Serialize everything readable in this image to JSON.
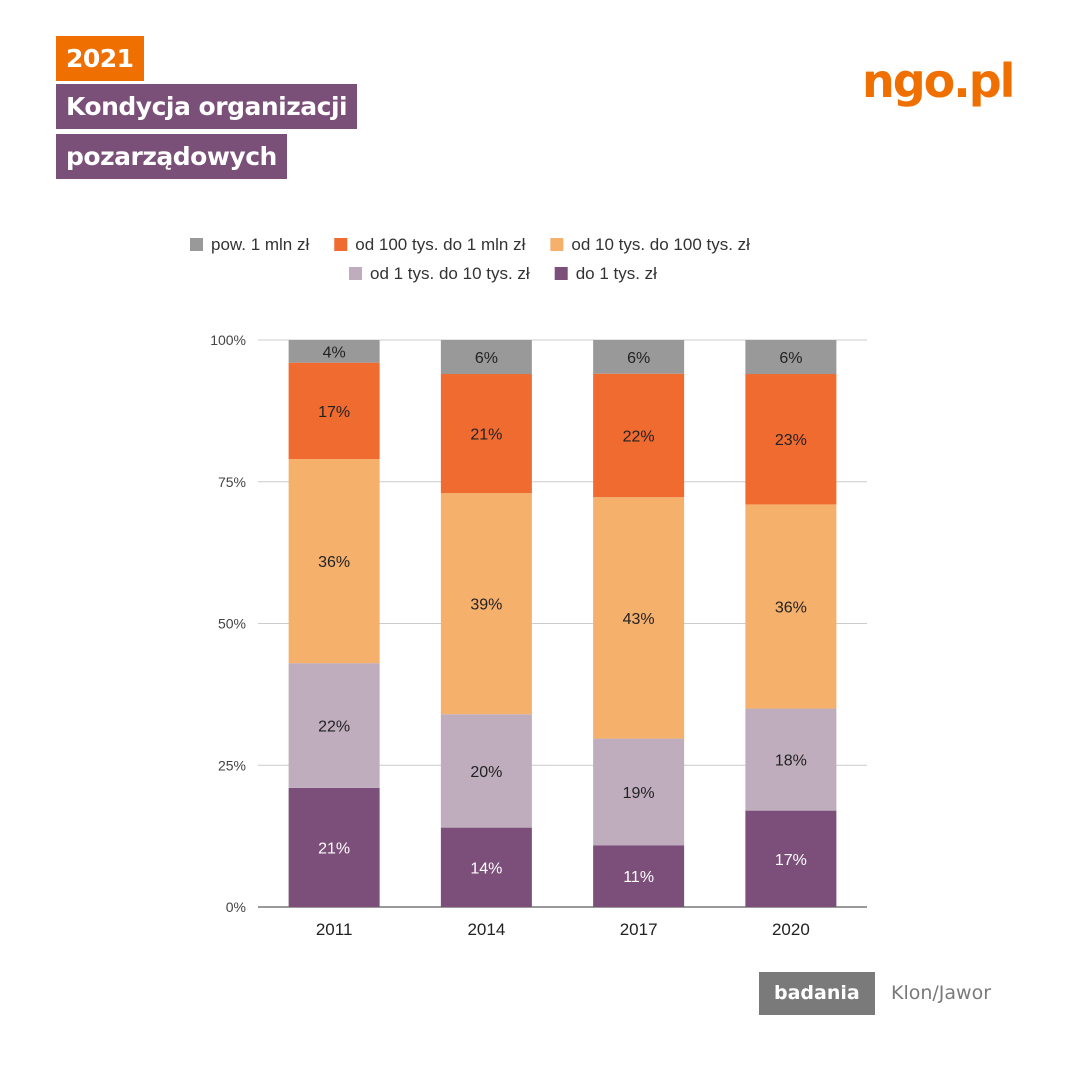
{
  "header": {
    "year": "2021",
    "title_line1": "Kondycja organizacji",
    "title_line2": "pozarządowych",
    "logo": "ngo.pl"
  },
  "footer": {
    "badge": "badania",
    "source": "Klon/Jawor"
  },
  "chart_data": {
    "type": "bar",
    "stacked": true,
    "categories": [
      "2011",
      "2014",
      "2017",
      "2020"
    ],
    "series": [
      {
        "name": "do 1 tys. zł",
        "color": "#7b4f7a",
        "label_color": "#ffffff",
        "values": [
          21,
          14,
          11,
          17
        ]
      },
      {
        "name": "od 1 tys. do 10 tys. zł",
        "color": "#bfadbe",
        "label_color": "#222222",
        "values": [
          22,
          20,
          19,
          18
        ]
      },
      {
        "name": "od 10 tys. do 100 tys. zł",
        "color": "#f5b06c",
        "label_color": "#222222",
        "values": [
          36,
          39,
          43,
          36
        ]
      },
      {
        "name": "od 100 tys. do 1 mln zł",
        "color": "#ef6b30",
        "label_color": "#222222",
        "values": [
          17,
          21,
          22,
          23
        ]
      },
      {
        "name": "pow. 1 mln zł",
        "color": "#999999",
        "label_color": "#222222",
        "values": [
          4,
          6,
          6,
          6
        ]
      }
    ],
    "legend_order": [
      4,
      3,
      2,
      1,
      0
    ],
    "yticks": [
      "0%",
      "25%",
      "50%",
      "75%",
      "100%"
    ],
    "ylim": [
      0,
      100
    ],
    "legend": "top",
    "grid": true
  }
}
